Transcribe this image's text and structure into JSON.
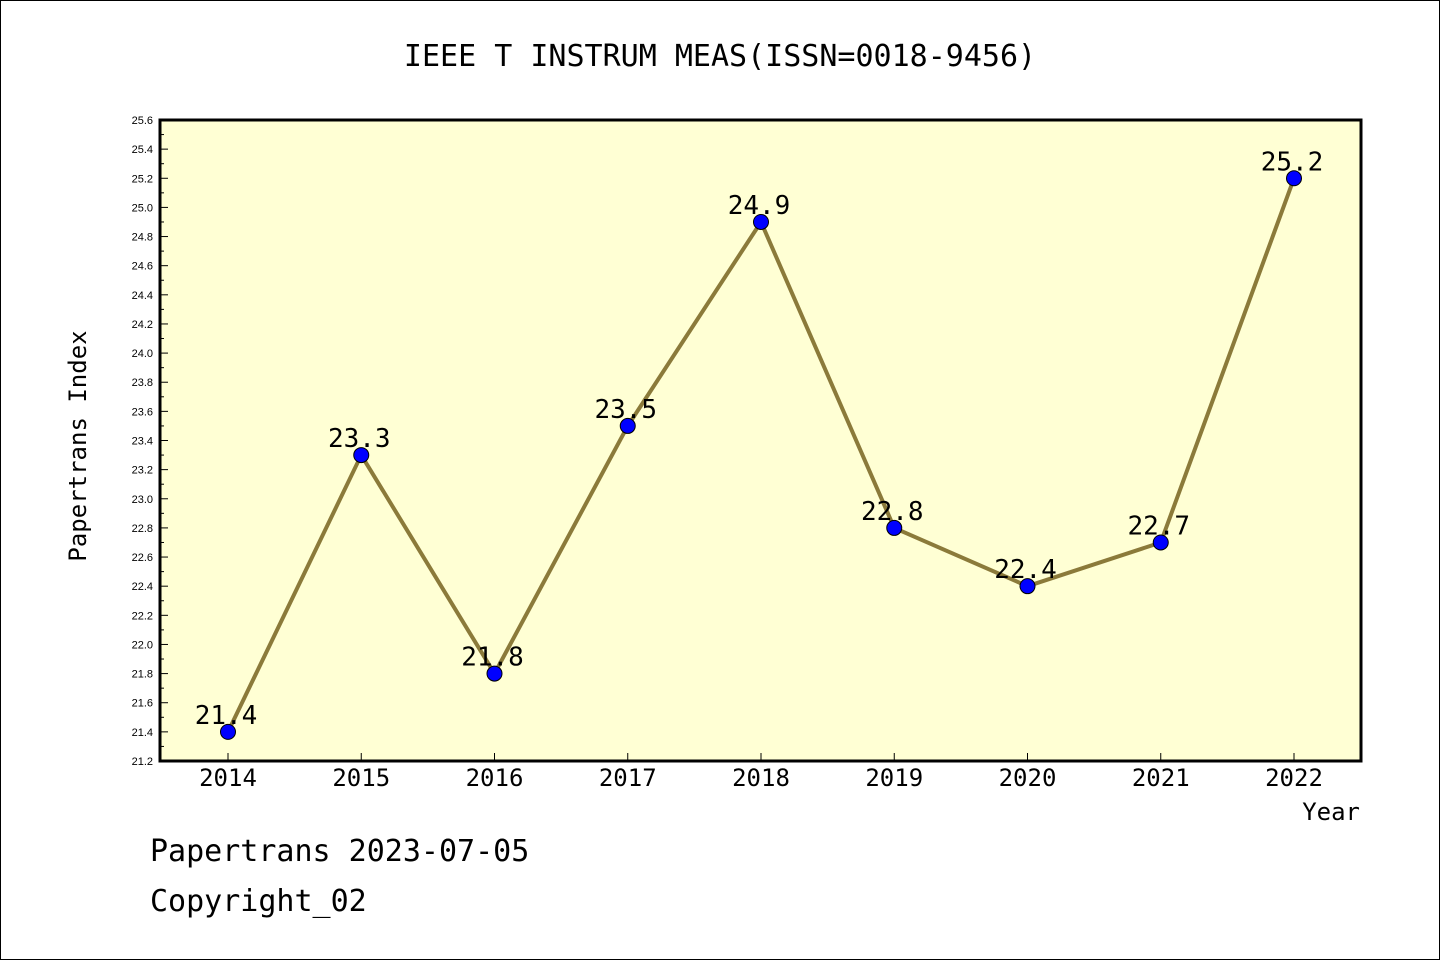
{
  "chart_data": {
    "type": "line",
    "title": "IEEE T INSTRUM MEAS(ISSN=0018-9456)",
    "xlabel": "Year",
    "ylabel": "Papertrans Index",
    "categories": [
      "2014",
      "2015",
      "2016",
      "2017",
      "2018",
      "2019",
      "2020",
      "2021",
      "2022"
    ],
    "values": [
      21.4,
      23.3,
      21.8,
      23.5,
      24.9,
      22.8,
      22.4,
      22.7,
      25.2
    ],
    "data_labels": [
      "21.4",
      "23.3",
      "21.8",
      "23.5",
      "24.9",
      "22.8",
      "22.4",
      "22.7",
      "25.2"
    ],
    "ylim": [
      21.2,
      25.6
    ],
    "ytick_step": 0.2,
    "grid": false,
    "colors": {
      "plot_background": "#ffffd4",
      "line": "#8b7a3a",
      "marker": "#0000ff"
    }
  },
  "footer": {
    "line1": "Papertrans 2023-07-05",
    "line2": "Copyright_02"
  }
}
